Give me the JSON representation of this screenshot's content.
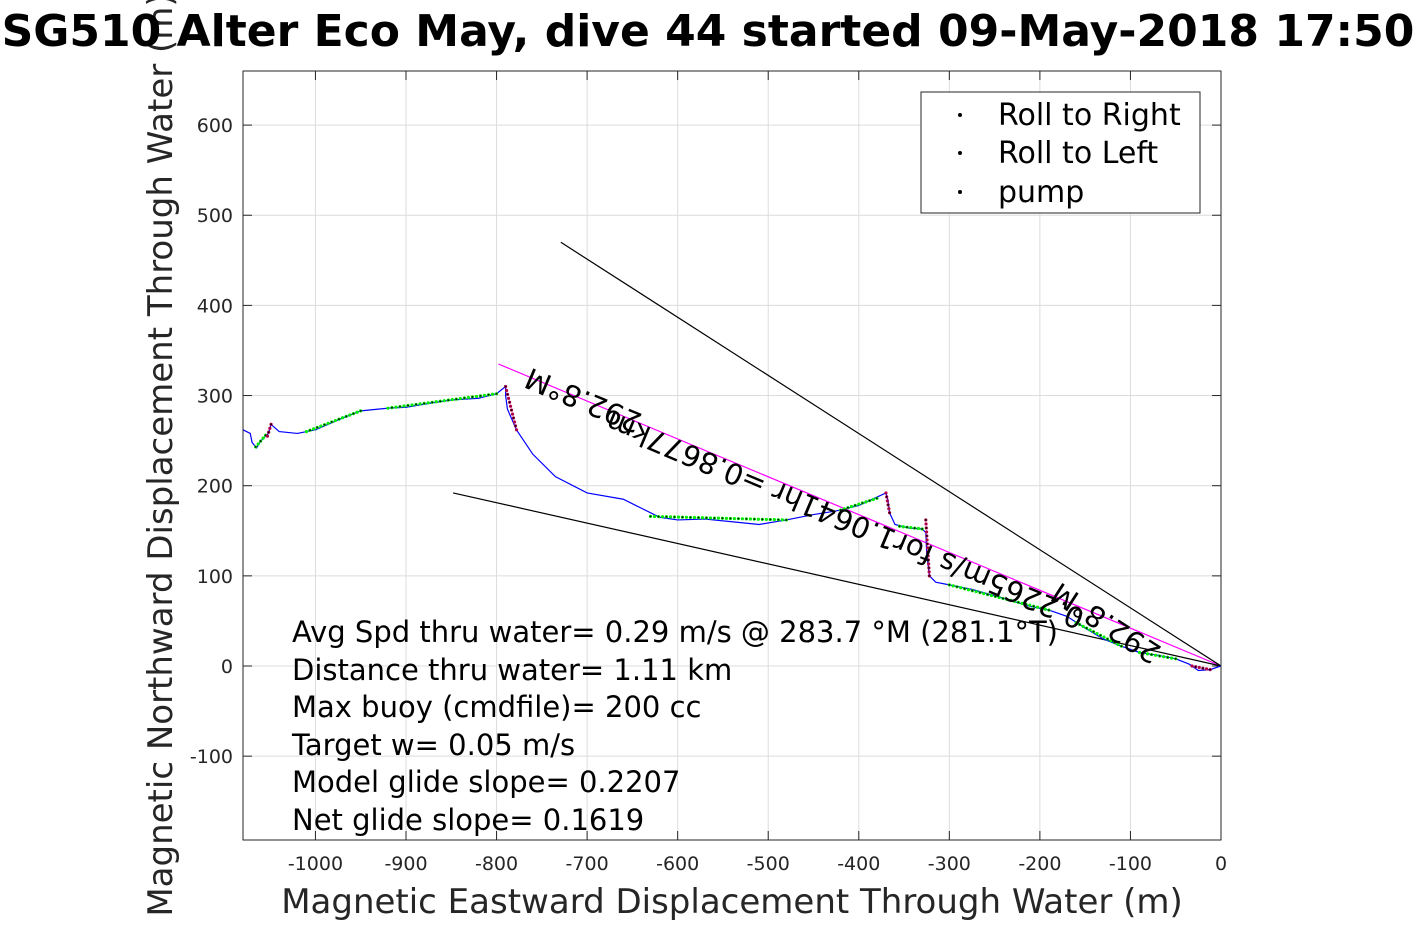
{
  "chart_data": {
    "type": "line",
    "title": "SG510 Alter Eco May, dive 44 started 09-May-2018 17:50",
    "xlabel": "Magnetic Eastward Displacement Through Water (m)",
    "ylabel": "Magnetic Northward Displacement Through Water (m)",
    "xlim": [
      -1080,
      0
    ],
    "ylim": [
      -193,
      660
    ],
    "xticks": [
      -1000,
      -900,
      -800,
      -700,
      -600,
      -500,
      -400,
      -300,
      -200,
      -100,
      0
    ],
    "yticks": [
      -100,
      0,
      100,
      200,
      300,
      400,
      500,
      600
    ],
    "grid": true,
    "legend": {
      "placement": "top-right",
      "entries": [
        {
          "name": "Roll to Right",
          "color": "#00ee00"
        },
        {
          "name": "Roll to Left",
          "color": "#ee0000"
        },
        {
          "name": "pump",
          "color": "#000000"
        }
      ]
    },
    "track": {
      "color": "#0000ff",
      "points": [
        [
          0,
          0
        ],
        [
          -12,
          -4
        ],
        [
          -25,
          -5
        ],
        [
          -35,
          2
        ],
        [
          -50,
          8
        ],
        [
          -70,
          12
        ],
        [
          -90,
          15
        ],
        [
          -110,
          22
        ],
        [
          -130,
          30
        ],
        [
          -150,
          42
        ],
        [
          -170,
          55
        ],
        [
          -190,
          62
        ],
        [
          -210,
          66
        ],
        [
          -230,
          72
        ],
        [
          -250,
          78
        ],
        [
          -275,
          85
        ],
        [
          -300,
          90
        ],
        [
          -315,
          93
        ],
        [
          -322,
          100
        ],
        [
          -325,
          125
        ],
        [
          -326,
          148
        ],
        [
          -330,
          152
        ],
        [
          -345,
          153
        ],
        [
          -360,
          157
        ],
        [
          -366,
          170
        ],
        [
          -368,
          185
        ],
        [
          -370,
          192
        ],
        [
          -385,
          185
        ],
        [
          -400,
          178
        ],
        [
          -425,
          172
        ],
        [
          -450,
          168
        ],
        [
          -480,
          162
        ],
        [
          -510,
          157
        ],
        [
          -540,
          160
        ],
        [
          -570,
          163
        ],
        [
          -600,
          162
        ],
        [
          -620,
          165
        ],
        [
          -640,
          175
        ],
        [
          -660,
          185
        ],
        [
          -700,
          192
        ],
        [
          -735,
          210
        ],
        [
          -760,
          235
        ],
        [
          -778,
          262
        ],
        [
          -788,
          285
        ],
        [
          -790,
          300
        ],
        [
          -790,
          310
        ],
        [
          -800,
          302
        ],
        [
          -820,
          297
        ],
        [
          -850,
          295
        ],
        [
          -870,
          292
        ],
        [
          -900,
          287
        ],
        [
          -920,
          286
        ],
        [
          -950,
          283
        ],
        [
          -970,
          275
        ],
        [
          -1000,
          262
        ],
        [
          -1020,
          258
        ],
        [
          -1040,
          260
        ],
        [
          -1049,
          268
        ],
        [
          -1052,
          258
        ],
        [
          -1060,
          250
        ],
        [
          -1065,
          242
        ],
        [
          -1070,
          248
        ],
        [
          -1072,
          258
        ],
        [
          -1080,
          262
        ]
      ]
    },
    "roll_right_segments": [
      [
        [
          -50,
          8
        ],
        [
          -90,
          15
        ]
      ],
      [
        [
          -110,
          22
        ],
        [
          -160,
          48
        ]
      ],
      [
        [
          -190,
          62
        ],
        [
          -300,
          90
        ]
      ],
      [
        [
          -330,
          152
        ],
        [
          -355,
          155
        ]
      ],
      [
        [
          -380,
          186
        ],
        [
          -420,
          173
        ]
      ],
      [
        [
          -480,
          162
        ],
        [
          -630,
          166
        ]
      ],
      [
        [
          -800,
          302
        ],
        [
          -920,
          286
        ]
      ],
      [
        [
          -950,
          283
        ],
        [
          -1010,
          260
        ]
      ],
      [
        [
          -1055,
          256
        ],
        [
          -1066,
          243
        ]
      ]
    ],
    "roll_left_segments": [
      [
        [
          -12,
          -4
        ],
        [
          -32,
          0
        ]
      ],
      [
        [
          -322,
          100
        ],
        [
          -326,
          162
        ]
      ],
      [
        [
          -366,
          170
        ],
        [
          -370,
          192
        ]
      ],
      [
        [
          -790,
          310
        ],
        [
          -778,
          262
        ]
      ],
      [
        [
          -1049,
          268
        ],
        [
          -1053,
          255
        ]
      ]
    ],
    "lines": [
      {
        "name": "heading-line",
        "color": "#ff00ff",
        "points": [
          [
            0,
            0
          ],
          [
            -798,
            335
          ]
        ]
      },
      {
        "name": "current-line",
        "color": "#000000",
        "points": [
          [
            0,
            0
          ],
          [
            -729,
            470
          ]
        ]
      },
      {
        "name": "model-line",
        "color": "#000000",
        "points": [
          [
            0,
            0
          ],
          [
            -848,
            192
          ]
        ]
      }
    ],
    "rotated_labels": [
      {
        "text": "292.8°M",
        "x": -700,
        "y": 305,
        "angle": 202.8
      },
      {
        "text": "0.2265m/s for1.0641hr =0.8677km",
        "x": -411,
        "y": 172,
        "angle": 202.8
      },
      {
        "text": "292.8°M",
        "x": -121,
        "y": 57,
        "angle": 212.8
      }
    ],
    "annotations": [
      "Avg Spd thru water=  0.29 m/s @ 283.7 °M (281.1°T)",
      "Distance thru water=  1.11 km",
      "Max buoy (cmdfile)= 200 cc",
      "Target w= 0.05 m/s",
      "Model glide slope= 0.2207",
      "Net glide slope= 0.1619"
    ]
  }
}
